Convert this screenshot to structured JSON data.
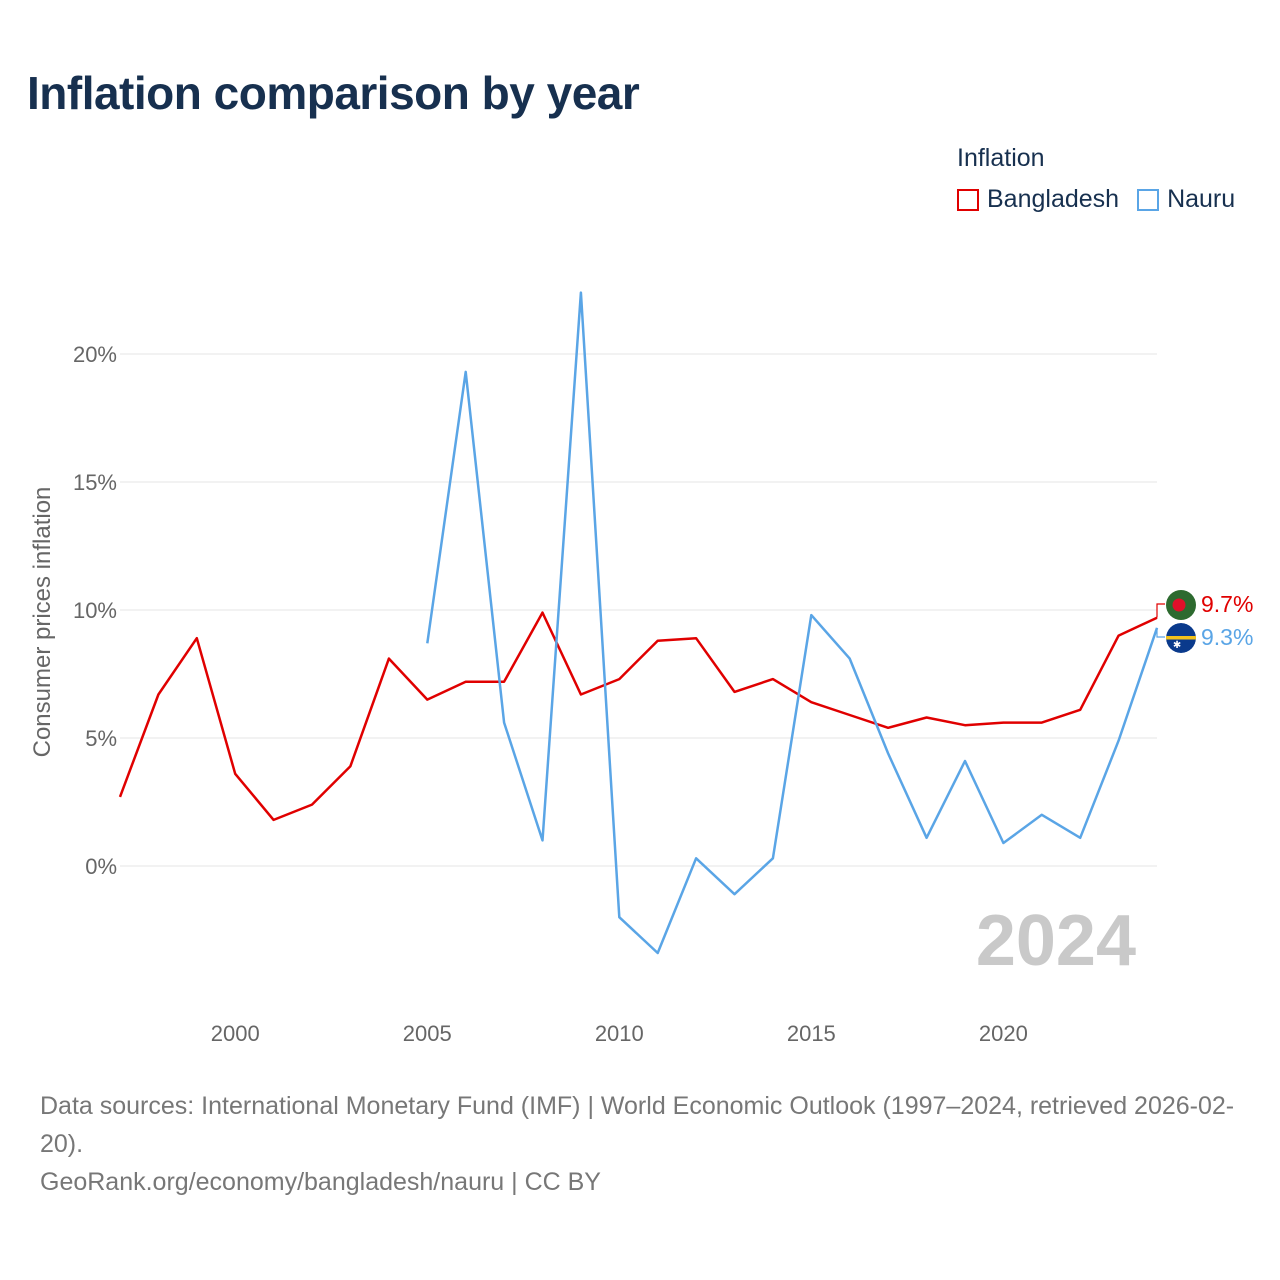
{
  "title": "Inflation comparison by year",
  "legend": {
    "title": "Inflation",
    "items": [
      {
        "label": "Bangladesh",
        "color": "#e00000"
      },
      {
        "label": "Nauru",
        "color": "#5aa5e6"
      }
    ]
  },
  "footer": {
    "sources": "Data sources: International Monetary Fund (IMF) | World Economic Outlook (1997–2024, retrieved 2026-02-20).",
    "credit": "GeoRank.org/economy/bangladesh/nauru | CC BY"
  },
  "chart_data": {
    "type": "line",
    "title": "Inflation comparison by year",
    "xlabel": "",
    "ylabel": "Consumer prices inflation",
    "xlim": [
      1997,
      2024
    ],
    "ylim": [
      -5,
      23
    ],
    "x_ticks": [
      2000,
      2005,
      2010,
      2015,
      2020
    ],
    "y_ticks": [
      0,
      5,
      10,
      15,
      20
    ],
    "y_tick_labels": [
      "0%",
      "5%",
      "10%",
      "15%",
      "20%"
    ],
    "grid": true,
    "legend_position": "top-right",
    "current_year_label": "2024",
    "series": [
      {
        "name": "Bangladesh",
        "color": "#e00000",
        "end_label": "9.7%",
        "x": [
          1997,
          1998,
          1999,
          2000,
          2001,
          2002,
          2003,
          2004,
          2005,
          2006,
          2007,
          2008,
          2009,
          2010,
          2011,
          2012,
          2013,
          2014,
          2015,
          2016,
          2017,
          2018,
          2019,
          2020,
          2021,
          2022,
          2023,
          2024
        ],
        "values": [
          2.7,
          6.7,
          8.9,
          3.6,
          1.8,
          2.4,
          3.9,
          8.1,
          6.5,
          7.2,
          7.2,
          9.9,
          6.7,
          7.3,
          8.8,
          8.9,
          6.8,
          7.3,
          6.4,
          5.9,
          5.4,
          5.8,
          5.5,
          5.6,
          5.6,
          6.1,
          9.0,
          9.7
        ]
      },
      {
        "name": "Nauru",
        "color": "#5aa5e6",
        "end_label": "9.3%",
        "x": [
          2005,
          2006,
          2007,
          2008,
          2009,
          2010,
          2011,
          2012,
          2013,
          2014,
          2015,
          2016,
          2017,
          2018,
          2019,
          2020,
          2021,
          2022,
          2023,
          2024
        ],
        "values": [
          8.7,
          19.3,
          5.6,
          1.0,
          22.4,
          -2.0,
          -3.4,
          0.3,
          -1.1,
          0.3,
          9.8,
          8.1,
          4.4,
          1.1,
          4.1,
          0.9,
          2.0,
          1.1,
          4.9,
          9.3
        ]
      }
    ]
  }
}
